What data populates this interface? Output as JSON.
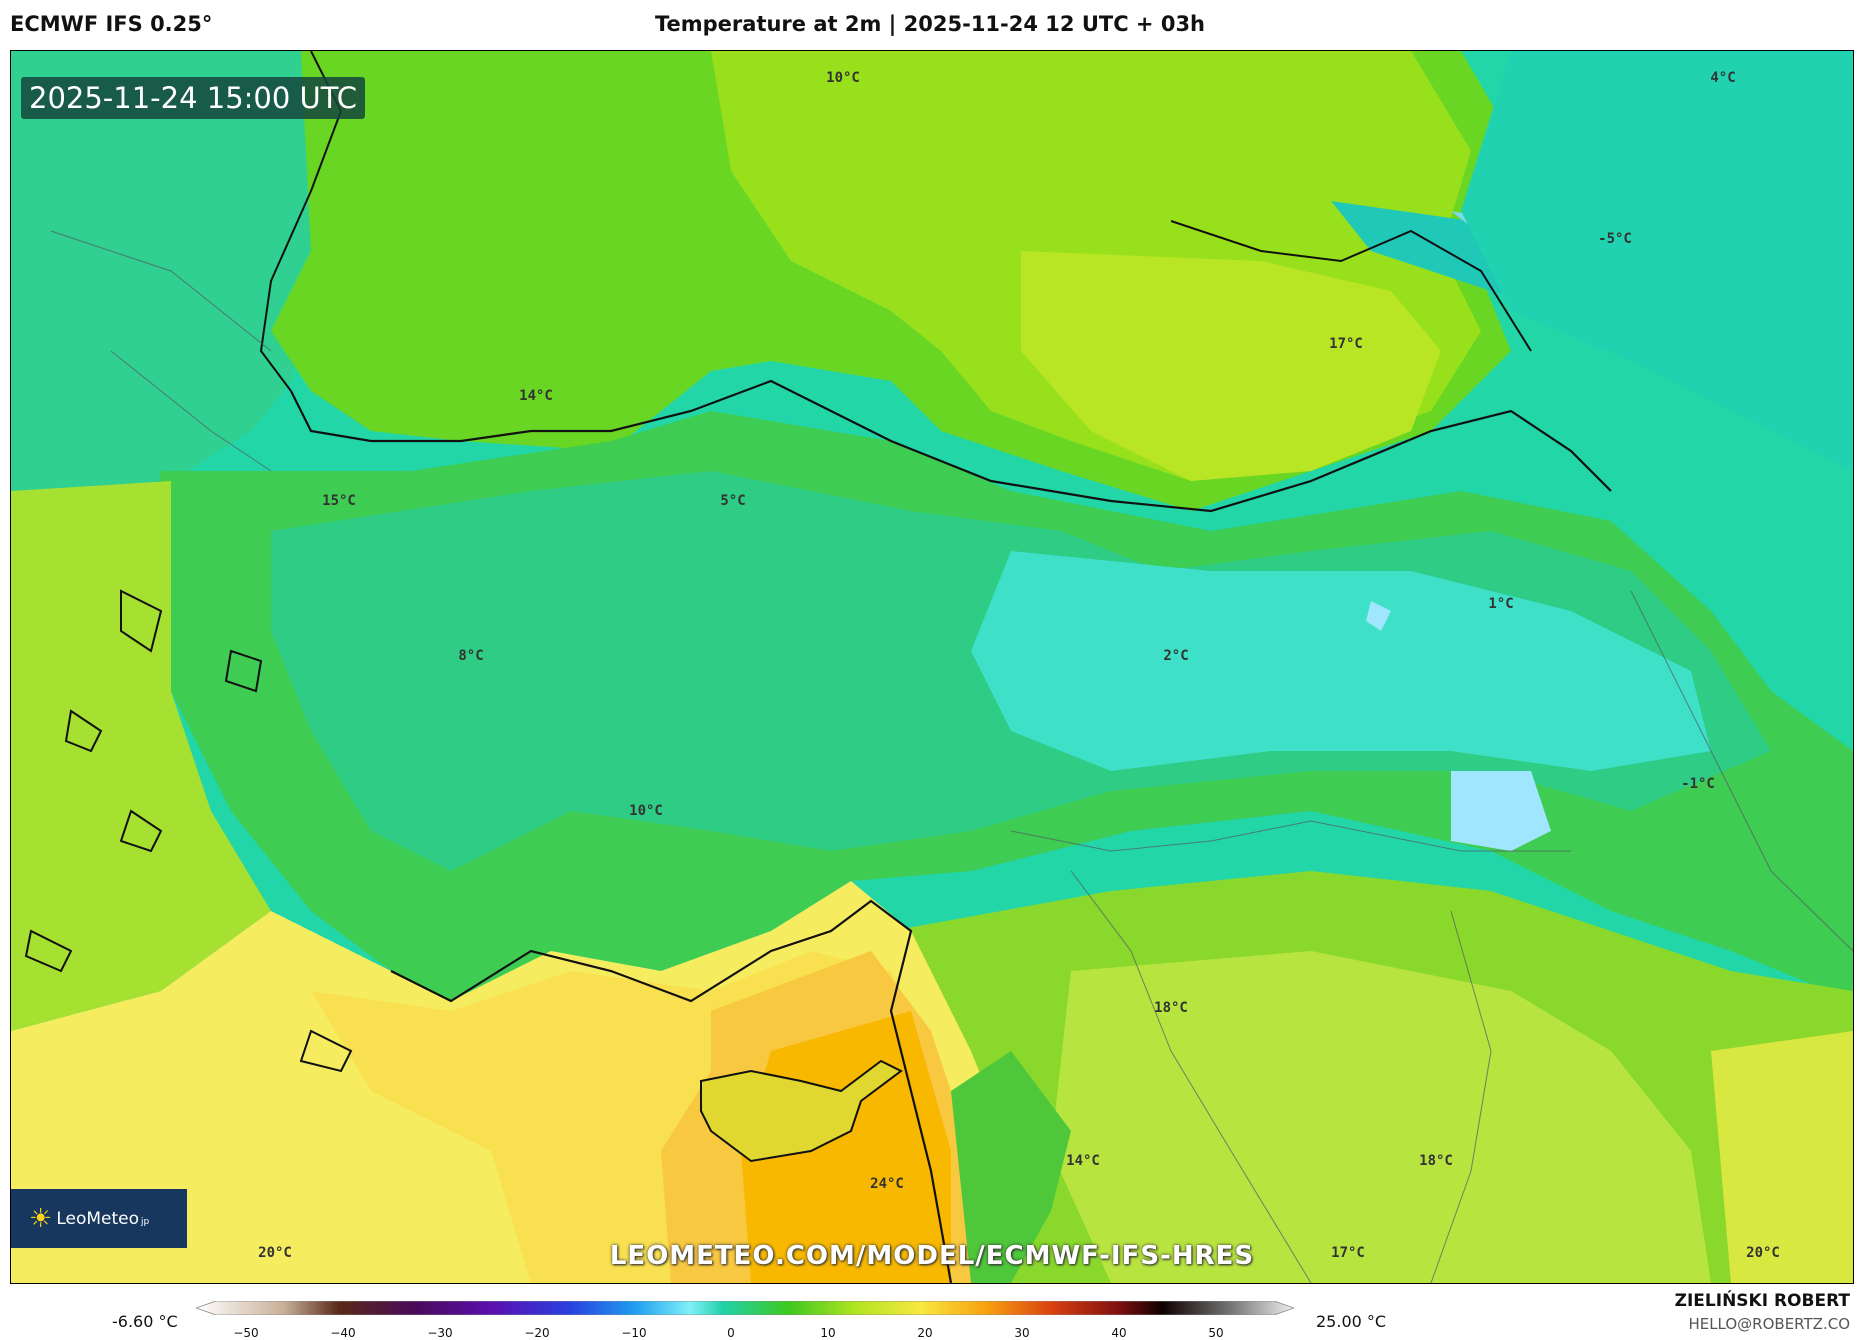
{
  "header": {
    "model": "ECMWF IFS 0.25°",
    "title": "Temperature at 2m | 2025-11-24 12 UTC + 03h"
  },
  "map": {
    "timestamp": "2025-11-24 15:00 UTC",
    "watermark": "LEOMETEO.COM/MODEL/ECMWF-IFS-HRES",
    "logo_text": "LeoMeteo",
    "logo_suffix": "jp",
    "logo_icon": "sun-icon",
    "labels": [
      {
        "text": "10°C"
      },
      {
        "text": "4°C"
      },
      {
        "text": "-5°C"
      },
      {
        "text": "17°C"
      },
      {
        "text": "14°C"
      },
      {
        "text": "15°C"
      },
      {
        "text": "5°C"
      },
      {
        "text": "1°C"
      },
      {
        "text": "8°C"
      },
      {
        "text": "2°C"
      },
      {
        "text": "10°C"
      },
      {
        "text": "-1°C"
      },
      {
        "text": "18°C"
      },
      {
        "text": "14°C"
      },
      {
        "text": "18°C"
      },
      {
        "text": "24°C"
      },
      {
        "text": "20°C"
      },
      {
        "text": "17°C"
      },
      {
        "text": "20°C"
      }
    ]
  },
  "legend": {
    "min_label": "-6.60 °C",
    "max_label": "25.00 °C",
    "ticks": [
      "−50",
      "−40",
      "−30",
      "−20",
      "−10",
      "0",
      "10",
      "20",
      "30",
      "40",
      "50"
    ],
    "colors": [
      "#ffffff",
      "#e8dcc8",
      "#b89a80",
      "#7a5040",
      "#3a1010",
      "#4a0a40",
      "#5a0a8a",
      "#4020d0",
      "#2060e8",
      "#20a0f0",
      "#40f0e0",
      "#20d090",
      "#40c020",
      "#a0e020",
      "#f0f040",
      "#f0c020",
      "#f08010",
      "#d04010",
      "#801010",
      "#200000",
      "#404040",
      "#a0a0a0",
      "#e8e8e8"
    ],
    "palette_stops": {
      "cold_blue": "#3a8ee8",
      "ice": "#a8e0ff",
      "teal": "#22d6b0",
      "green": "#3ec820",
      "lime": "#9ee01a",
      "yellow": "#f8f070",
      "orange": "#f8b000"
    }
  },
  "footer": {
    "author": "ZIELIŃSKI ROBERT",
    "email": "HELLO@ROBERTZ.CO"
  }
}
